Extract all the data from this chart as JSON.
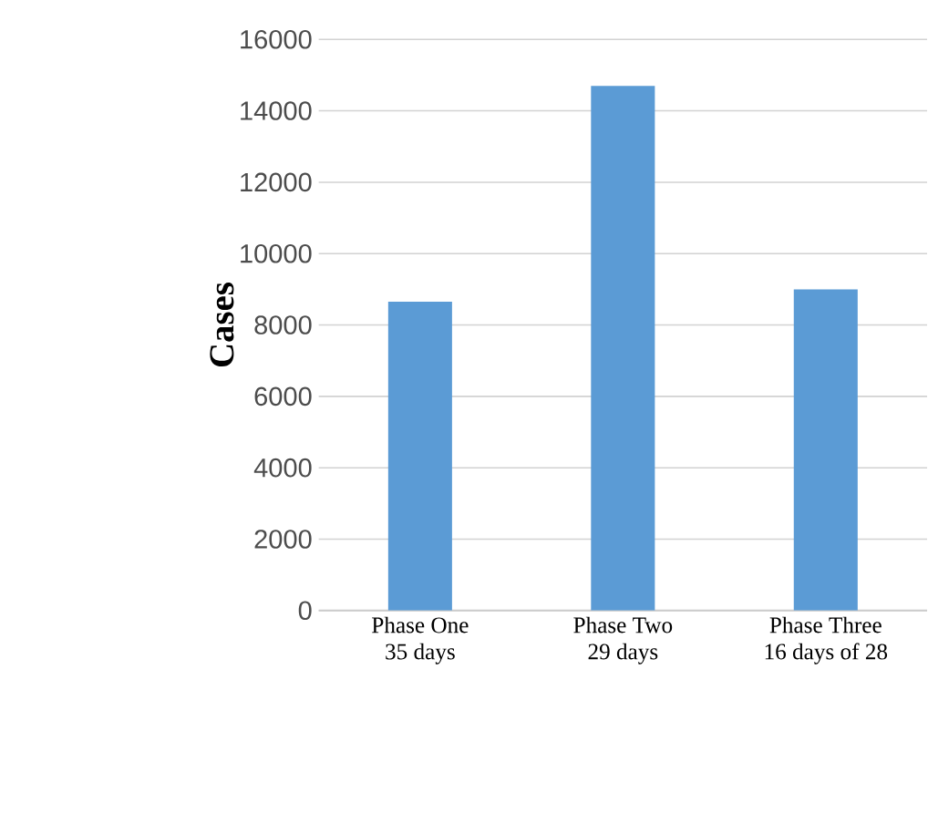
{
  "chart_data": {
    "type": "bar",
    "ylabel": "Cases",
    "categories": [
      "Phase One\n35 days",
      "Phase Two\n29 days",
      "Phase Three\n16 days of 28"
    ],
    "values": [
      8650,
      14700,
      9000
    ],
    "color": "#5b9bd5",
    "ylim": [
      0,
      16000
    ],
    "yticks": [
      0,
      2000,
      4000,
      6000,
      8000,
      10000,
      12000,
      14000,
      16000
    ],
    "grid": "y"
  }
}
